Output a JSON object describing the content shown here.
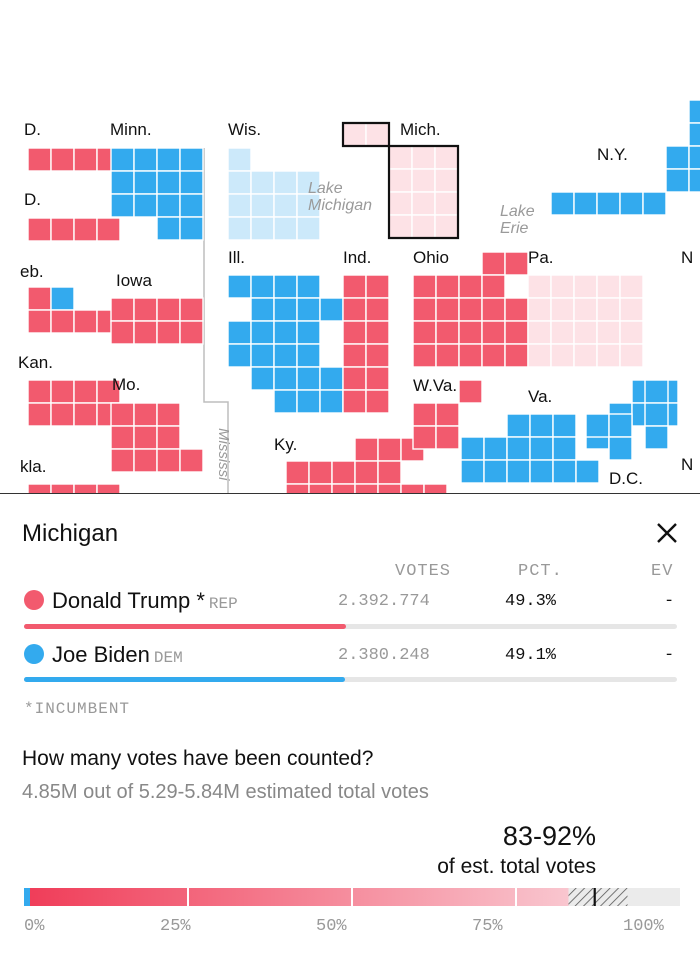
{
  "map": {
    "labels": {
      "nd": "D.",
      "sd": "D.",
      "neb": "eb.",
      "kan": "Kan.",
      "okla": "kla.",
      "minn": "Minn.",
      "iowa": "Iowa",
      "mo": "Mo.",
      "wis": "Wis.",
      "ill": "Ill.",
      "ind": "Ind.",
      "ky": "Ky.",
      "mich": "Mich.",
      "ohio": "Ohio",
      "wva": "W.Va.",
      "va": "Va.",
      "pa": "Pa.",
      "ny": "N.Y.",
      "dc": "D.C.",
      "n1": "N",
      "n2": "N"
    },
    "water": {
      "lake_michigan_1": "Lake",
      "lake_michigan_2": "Michigan",
      "lake_erie_1": "Lake",
      "lake_erie_2": "Erie",
      "river": "Mississi"
    },
    "colors": {
      "rep": "#f25a6e",
      "dem": "#33aaee",
      "lean_rep": "#fde2e6",
      "lean_dem": "#cce9fa"
    }
  },
  "panel": {
    "state": "Michigan",
    "close_icon": "close-icon",
    "columns": {
      "votes": "VOTES",
      "pct": "PCT.",
      "ev": "EV"
    },
    "candidates": [
      {
        "name": "Donald Trump",
        "mark": "*",
        "party": "REP",
        "votes": "2.392.774",
        "pct": "49.3%",
        "ev": "-",
        "color": "#f25a6e",
        "share": 0.493
      },
      {
        "name": "Joe Biden",
        "mark": "",
        "party": "DEM",
        "votes": "2.380.248",
        "pct": "49.1%",
        "ev": "-",
        "color": "#33aaee",
        "share": 0.491
      }
    ],
    "incumbent_note": "*INCUMBENT",
    "question": "How many votes have been counted?",
    "counted_text": "4.85M out of 5.29-5.84M estimated total votes",
    "range_big": "83-92%",
    "range_small": "of est. total votes",
    "progress": {
      "low": 0.83,
      "high": 0.92,
      "estimate": 0.87
    },
    "ticks": [
      "0%",
      "25%",
      "50%",
      "75%",
      "100%"
    ]
  }
}
